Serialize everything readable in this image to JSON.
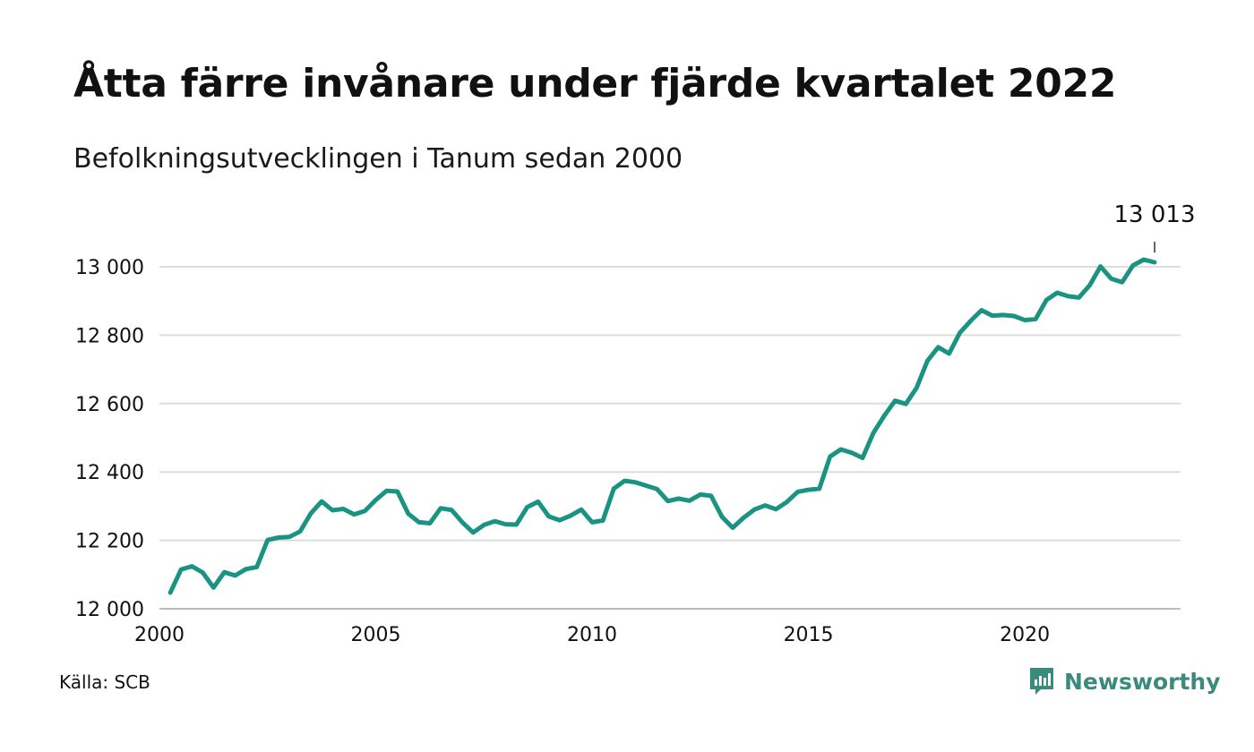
{
  "title": "Åtta färre invånare under fjärde kvartalet 2022",
  "subtitle": "Befolkningsutvecklingen i Tanum sedan 2000",
  "source": "Källa: SCB",
  "brand": "Newsworthy",
  "colors": {
    "line": "#1a9383",
    "grid": "#dddddd",
    "brand": "#3a8a7e"
  },
  "chart_data": {
    "type": "line",
    "title": "Åtta färre invånare under fjärde kvartalet 2022",
    "subtitle": "Befolkningsutvecklingen i Tanum sedan 2000",
    "xlabel": "",
    "ylabel": "",
    "xlim": [
      2000,
      2023.6
    ],
    "ylim": [
      12000,
      13000
    ],
    "x_ticks": [
      2000,
      2005,
      2010,
      2015,
      2020
    ],
    "x_tick_labels": [
      "2000",
      "2005",
      "2010",
      "2015",
      "2020"
    ],
    "y_ticks": [
      12000,
      12200,
      12400,
      12600,
      12800,
      13000
    ],
    "y_tick_labels": [
      "12 000",
      "12 200",
      "12 400",
      "12 600",
      "12 800",
      "13 000"
    ],
    "grid": true,
    "legend": "none",
    "end_label": "13 013",
    "series": [
      {
        "x": [
          2000.25,
          2000.5,
          2000.75,
          2001.0,
          2001.25,
          2001.5,
          2001.75,
          2002.0,
          2002.25,
          2002.5,
          2002.75,
          2003.0,
          2003.25,
          2003.5,
          2003.75,
          2004.0,
          2004.25,
          2004.5,
          2004.75,
          2005.0,
          2005.25,
          2005.5,
          2005.75,
          2006.0,
          2006.25,
          2006.5,
          2006.75,
          2007.0,
          2007.25,
          2007.5,
          2007.75,
          2008.0,
          2008.25,
          2008.5,
          2008.75,
          2009.0,
          2009.25,
          2009.5,
          2009.75,
          2010.0,
          2010.25,
          2010.5,
          2010.75,
          2011.0,
          2011.25,
          2011.5,
          2011.75,
          2012.0,
          2012.25,
          2012.5,
          2012.75,
          2013.0,
          2013.25,
          2013.5,
          2013.75,
          2014.0,
          2014.25,
          2014.5,
          2014.75,
          2015.0,
          2015.25,
          2015.5,
          2015.75,
          2016.0,
          2016.25,
          2016.5,
          2016.75,
          2017.0,
          2017.25,
          2017.5,
          2017.75,
          2018.0,
          2018.25,
          2018.5,
          2018.75,
          2019.0,
          2019.25,
          2019.5,
          2019.75,
          2020.0,
          2020.25,
          2020.5,
          2020.75,
          2021.0,
          2021.25,
          2021.5,
          2021.75,
          2022.0,
          2022.25,
          2022.5,
          2022.75,
          2023.0
        ],
        "values": [
          12047,
          12115,
          12124,
          12106,
          12062,
          12107,
          12097,
          12116,
          12122,
          12201,
          12208,
          12210,
          12226,
          12279,
          12314,
          12288,
          12292,
          12276,
          12286,
          12318,
          12345,
          12343,
          12278,
          12253,
          12250,
          12294,
          12289,
          12253,
          12223,
          12245,
          12256,
          12247,
          12246,
          12297,
          12313,
          12270,
          12259,
          12272,
          12290,
          12253,
          12258,
          12351,
          12374,
          12370,
          12360,
          12350,
          12315,
          12322,
          12316,
          12334,
          12330,
          12269,
          12237,
          12266,
          12290,
          12302,
          12291,
          12312,
          12342,
          12348,
          12351,
          12445,
          12466,
          12456,
          12441,
          12514,
          12564,
          12608,
          12599,
          12646,
          12725,
          12765,
          12746,
          12807,
          12842,
          12873,
          12857,
          12859,
          12856,
          12844,
          12847,
          12903,
          12924,
          12914,
          12910,
          12946,
          13001,
          12965,
          12955,
          13004,
          13021,
          13013
        ]
      }
    ]
  }
}
